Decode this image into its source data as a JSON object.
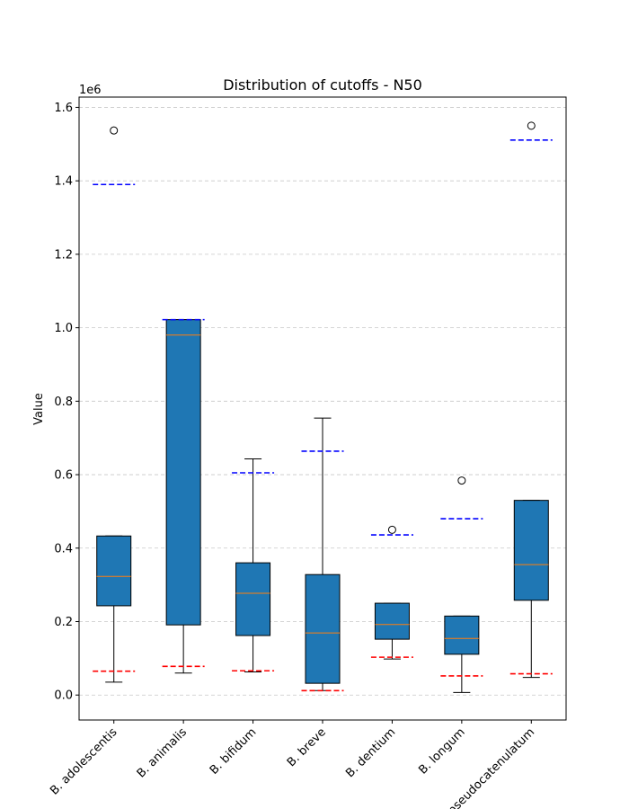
{
  "chart_data": {
    "type": "box",
    "title": "Distribution of cutoffs - N50",
    "xlabel": "",
    "ylabel": "Value",
    "y_offset_label": "1e6",
    "ylim": [
      -68000,
      1628000
    ],
    "yticks": [
      0.0,
      0.2,
      0.4,
      0.6,
      0.8,
      1.0,
      1.2,
      1.4,
      1.6
    ],
    "y_scale_factor": 1000000,
    "grid": "horizontal dashed",
    "box_color": "#1f77b4",
    "median_color": "#ff7f0e",
    "upper_line_color": "#0000ff",
    "lower_line_color": "#ff0000",
    "categories": [
      "B. adolescentis",
      "B. animalis",
      "B. bifidum",
      "B. breve",
      "B. dentium",
      "B. longum",
      "B. pseudocatenulatum"
    ],
    "boxes": [
      {
        "whislo": 35000,
        "q1": 243000,
        "med": 323000,
        "q3": 433000,
        "whishi": 433000,
        "fliers": [
          1537000
        ],
        "upper_line": 1390000,
        "lower_line": 65000
      },
      {
        "whislo": 60000,
        "q1": 191000,
        "med": 980000,
        "q3": 1022000,
        "whishi": 1022000,
        "fliers": [],
        "upper_line": 1022000,
        "lower_line": 78000
      },
      {
        "whislo": 63000,
        "q1": 162000,
        "med": 277000,
        "q3": 360000,
        "whishi": 643000,
        "fliers": [],
        "upper_line": 605000,
        "lower_line": 66000
      },
      {
        "whislo": 12000,
        "q1": 32000,
        "med": 169000,
        "q3": 328000,
        "whishi": 754000,
        "fliers": [],
        "upper_line": 664000,
        "lower_line": 12000
      },
      {
        "whislo": 98000,
        "q1": 152000,
        "med": 192000,
        "q3": 250000,
        "whishi": 250000,
        "fliers": [
          450000
        ],
        "upper_line": 436000,
        "lower_line": 103000
      },
      {
        "whislo": 7000,
        "q1": 111000,
        "med": 154000,
        "q3": 215000,
        "whishi": 215000,
        "fliers": [
          584000
        ],
        "upper_line": 480000,
        "lower_line": 52000
      },
      {
        "whislo": 48000,
        "q1": 258000,
        "med": 355000,
        "q3": 530000,
        "whishi": 530000,
        "fliers": [
          1550000
        ],
        "upper_line": 1511000,
        "lower_line": 58000
      }
    ]
  }
}
